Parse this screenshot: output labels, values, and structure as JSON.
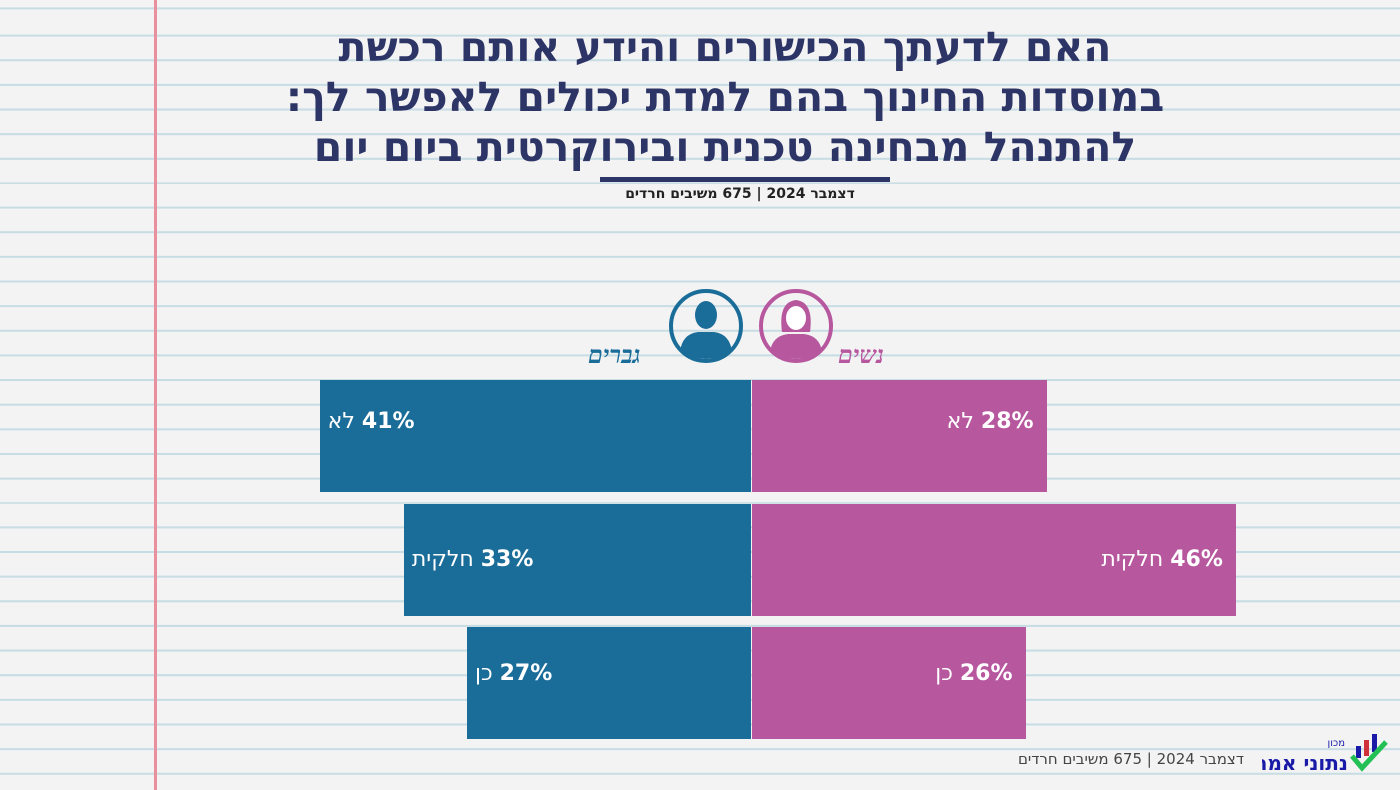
{
  "chart_data": {
    "type": "bar",
    "title": [
      "האם לדעתך הכישורים והידע אותם רכשת",
      "במוסדות החינוך בהם למדת יכולים לאפשר לך:",
      "להתנהל מבחינה טכנית ובירוקרטית ביום יום"
    ],
    "subtitle": "דצמבר 2024 | 675 משיבים חרדים",
    "categories": [
      "לא",
      "חלקית",
      "כן"
    ],
    "series": [
      {
        "name": "גברים",
        "color": "#1b6d99",
        "values": [
          41,
          33,
          27
        ]
      },
      {
        "name": "נשים",
        "color": "#b7579e",
        "values": [
          28,
          46,
          26
        ]
      }
    ],
    "unit": "%"
  },
  "footer": "דצמבר 2024 | 675 משיבים חרדים",
  "logo": {
    "small": "מכון",
    "main": "נתוני אמת"
  }
}
